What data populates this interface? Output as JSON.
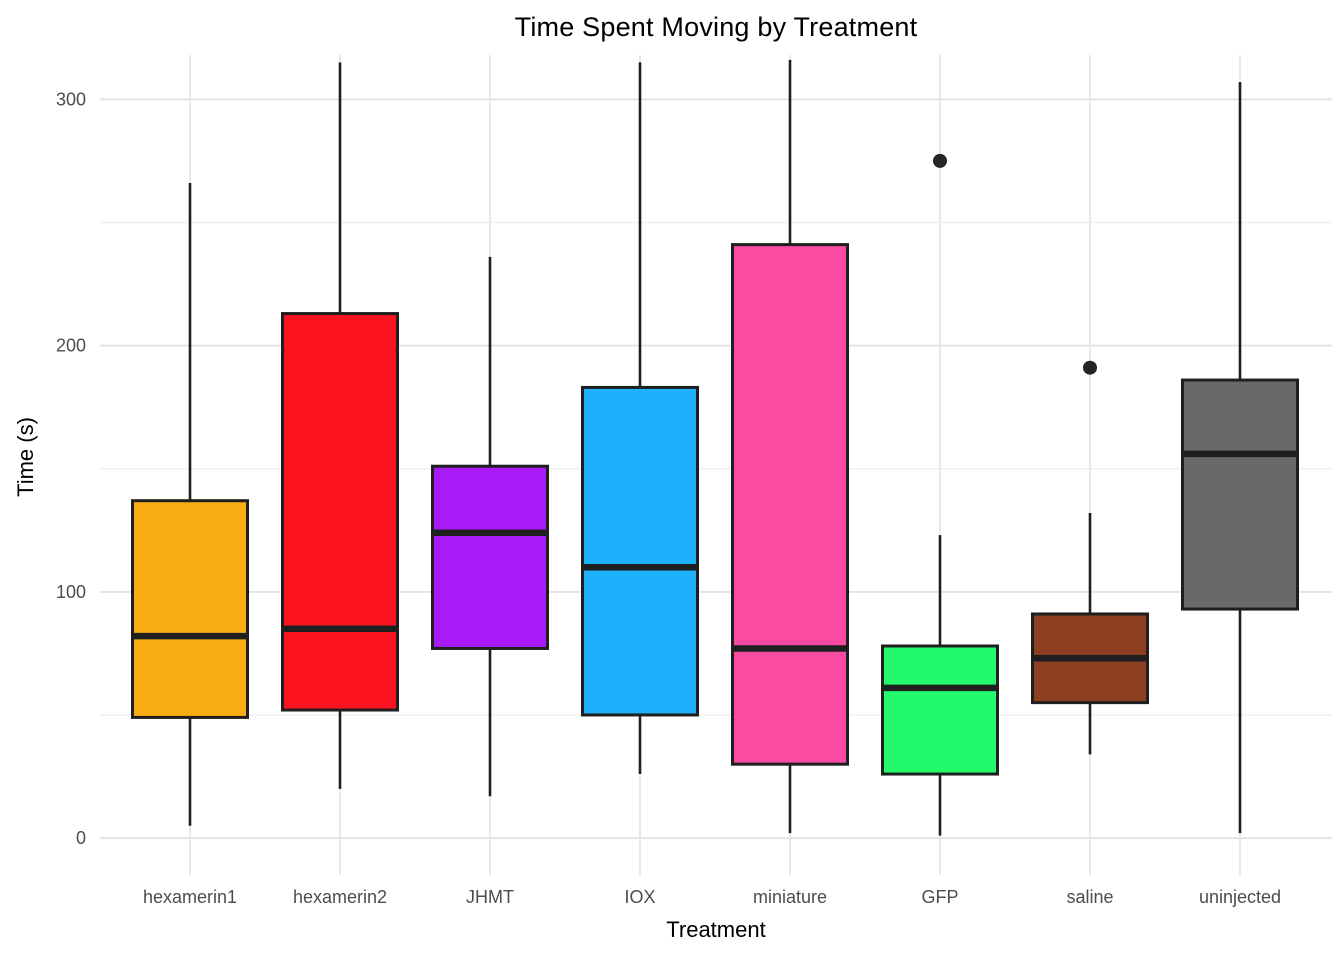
{
  "title": "Time Spent Moving by Treatment",
  "chart_data": {
    "type": "boxplot",
    "title": "Time Spent Moving by Treatment",
    "xlabel": "Treatment",
    "ylabel": "Time (s)",
    "categories": [
      "hexamerin1",
      "hexamerin2",
      "JHMT",
      "IOX",
      "miniature",
      "GFP",
      "saline",
      "uninjected"
    ],
    "y_ticks": [
      0,
      100,
      200,
      300
    ],
    "y_minor_gridlines": [
      50,
      150,
      250
    ],
    "ylim": [
      -15,
      318
    ],
    "grid": "on",
    "legend": "none",
    "series": [
      {
        "category": "hexamerin1",
        "color": "#FAAC15",
        "whisker_low": 5,
        "q1": 49,
        "median": 82,
        "q3": 137,
        "whisker_high": 266,
        "outliers": []
      },
      {
        "category": "hexamerin2",
        "color": "#FB1420",
        "whisker_low": 20,
        "q1": 52,
        "median": 85,
        "q3": 213,
        "whisker_high": 315,
        "outliers": []
      },
      {
        "category": "JHMT",
        "color": "#A81AF8",
        "whisker_low": 17,
        "q1": 77,
        "median": 124,
        "q3": 151,
        "whisker_high": 236,
        "outliers": []
      },
      {
        "category": "IOX",
        "color": "#1DB1FB",
        "whisker_low": 26,
        "q1": 50,
        "median": 110,
        "q3": 183,
        "whisker_high": 315,
        "outliers": []
      },
      {
        "category": "miniature",
        "color": "#FB4AA2",
        "whisker_low": 2,
        "q1": 30,
        "median": 77,
        "q3": 241,
        "whisker_high": 316,
        "outliers": []
      },
      {
        "category": "GFP",
        "color": "#23FA6B",
        "whisker_low": 1,
        "q1": 26,
        "median": 61,
        "q3": 78,
        "whisker_high": 123,
        "outliers": [
          275
        ]
      },
      {
        "category": "saline",
        "color": "#8C4021",
        "whisker_low": 34,
        "q1": 55,
        "median": 73,
        "q3": 91,
        "whisker_high": 132,
        "outliers": [
          191
        ]
      },
      {
        "category": "uninjected",
        "color": "#696969",
        "whisker_low": 2,
        "q1": 93,
        "median": 156,
        "q3": 186,
        "whisker_high": 307,
        "outliers": []
      }
    ],
    "colors": {
      "box_border": "#1f1f1f",
      "median_line": "#1f1f1f",
      "whisker": "#1f1f1f",
      "outlier": "#252525",
      "grid_major": "#e4e4e4",
      "grid_minor": "#f0f0f0",
      "grid_vertical": "#e8e8e8",
      "tick_label": "#4d4d4d",
      "title_text": "#000000",
      "background": "#ffffff"
    }
  }
}
